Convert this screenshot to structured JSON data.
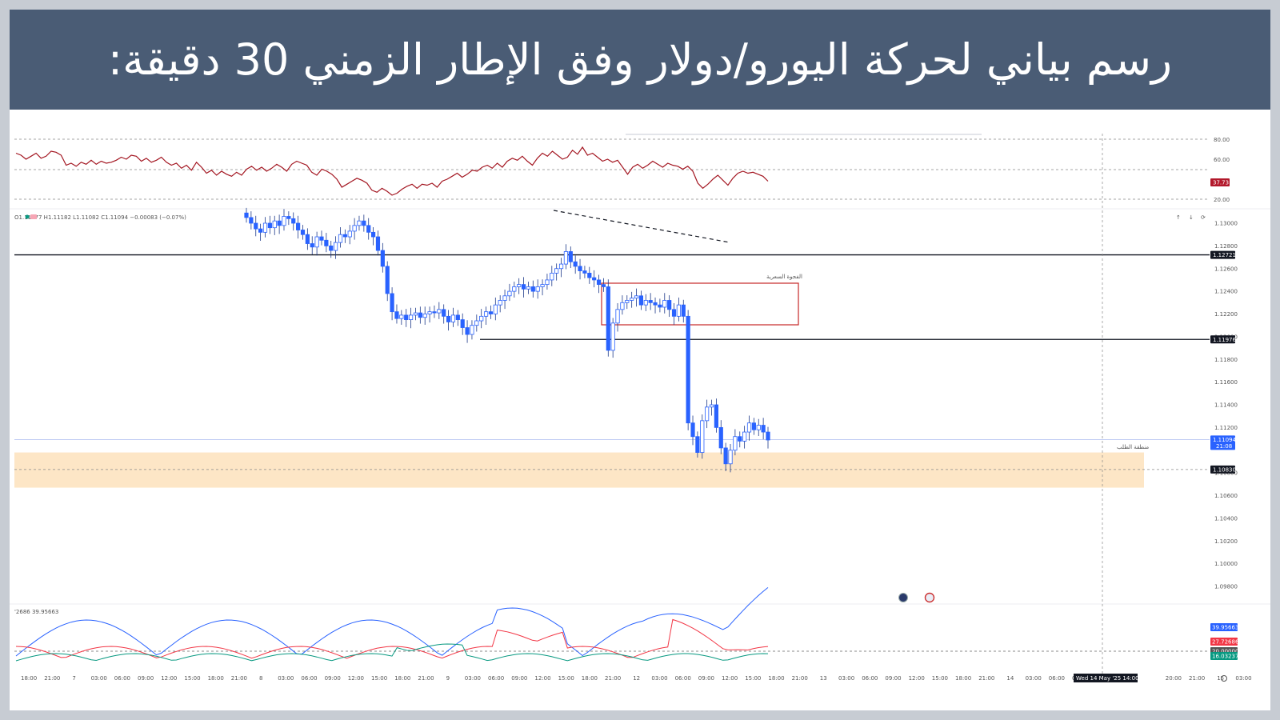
{
  "banner": {
    "title": "رسم بياني لحركة اليورو/دولار وفق الإطار الزمني 30 دقيقة:"
  },
  "chart_data": {
    "type": "candlestick",
    "legend": "O1.11177 H1.11182 L1.11082 C1.11094 −0.00083 (−0.07%)",
    "price_axis": {
      "ticks": [
        "1.13000",
        "1.12800",
        "1.12600",
        "1.12400",
        "1.12200",
        "1.12000",
        "1.11800",
        "1.11600",
        "1.11400",
        "1.11200",
        "1.10800",
        "1.10600",
        "1.10400",
        "1.10200",
        "1.10000",
        "1.09800"
      ],
      "range": [
        1.0975,
        1.1335
      ]
    },
    "price_labels": [
      {
        "value": 1.12721,
        "text": "1.12721",
        "color": "#131722"
      },
      {
        "value": 1.11976,
        "text": "1.11976",
        "color": "#131722"
      },
      {
        "value": 1.11094,
        "text": "1.11094",
        "sub": "21:08",
        "color": "#2962ff"
      },
      {
        "value": 1.1083,
        "text": "1.10830",
        "color": "#131722"
      }
    ],
    "horizontal_levels": [
      1.12721,
      1.11976
    ],
    "annotations": {
      "box_label": "الفجوة السعرية",
      "demand_zone_label": "منطقة الطلب",
      "demand_zone": [
        1.1067,
        1.1098
      ]
    },
    "candles_close": [
      1.1305,
      1.13,
      1.1295,
      1.1292,
      1.13,
      1.1296,
      1.1302,
      1.1298,
      1.1306,
      1.1304,
      1.13,
      1.1294,
      1.129,
      1.1282,
      1.1279,
      1.1288,
      1.1285,
      1.128,
      1.1276,
      1.1283,
      1.129,
      1.1288,
      1.1293,
      1.1298,
      1.1302,
      1.1298,
      1.1292,
      1.1288,
      1.1276,
      1.1262,
      1.1238,
      1.1222,
      1.1216,
      1.1219,
      1.1215,
      1.1219,
      1.1221,
      1.1217,
      1.122,
      1.1222,
      1.1221,
      1.1224,
      1.1218,
      1.1213,
      1.1219,
      1.1215,
      1.1208,
      1.1202,
      1.121,
      1.1214,
      1.1218,
      1.1222,
      1.122,
      1.1228,
      1.1232,
      1.1236,
      1.124,
      1.1244,
      1.1246,
      1.1242,
      1.1244,
      1.124,
      1.1244,
      1.1246,
      1.125,
      1.1256,
      1.126,
      1.1264,
      1.1275,
      1.1266,
      1.1262,
      1.1258,
      1.1256,
      1.1252,
      1.125,
      1.1246,
      1.1244,
      1.1188,
      1.1212,
      1.1224,
      1.123,
      1.1232,
      1.1234,
      1.1236,
      1.1228,
      1.1232,
      1.123,
      1.1228,
      1.1226,
      1.1232,
      1.1224,
      1.1218,
      1.1228,
      1.1218,
      1.1124,
      1.1112,
      1.1098,
      1.1126,
      1.1138,
      1.114,
      1.112,
      1.1102,
      1.1088,
      1.11,
      1.1112,
      1.1108,
      1.1116,
      1.1124,
      1.1118,
      1.1122,
      1.1116,
      1.1109
    ],
    "time_axis": [
      "18:00",
      "21:00",
      "7",
      "03:00",
      "06:00",
      "09:00",
      "12:00",
      "15:00",
      "18:00",
      "21:00",
      "8",
      "03:00",
      "06:00",
      "09:00",
      "12:00",
      "15:00",
      "18:00",
      "21:00",
      "9",
      "03:00",
      "06:00",
      "09:00",
      "12:00",
      "15:00",
      "18:00",
      "21:00",
      "12",
      "03:00",
      "06:00",
      "09:00",
      "12:00",
      "15:00",
      "18:00",
      "21:00",
      "13",
      "03:00",
      "06:00",
      "09:00",
      "12:00",
      "15:00",
      "18:00",
      "21:00",
      "14",
      "03:00",
      "06:00",
      "09:00",
      "",
      "",
      "",
      "20:00",
      "21:00",
      "15",
      "03:00"
    ],
    "time_highlight": "Wed 14 May '25   14:00",
    "rsi": {
      "ticks": [
        "80.00",
        "60.00",
        "20.00"
      ],
      "last": "37.73",
      "values": [
        66,
        64,
        60,
        63,
        66,
        61,
        63,
        68,
        67,
        64,
        54,
        56,
        53,
        57,
        55,
        59,
        55,
        58,
        56,
        57,
        59,
        62,
        60,
        64,
        63,
        58,
        61,
        57,
        59,
        62,
        57,
        54,
        56,
        51,
        54,
        49,
        57,
        52,
        46,
        49,
        44,
        48,
        45,
        43,
        47,
        44,
        50,
        53,
        49,
        52,
        48,
        51,
        55,
        52,
        48,
        55,
        58,
        56,
        54,
        47,
        44,
        50,
        48,
        45,
        40,
        32,
        35,
        38,
        41,
        39,
        36,
        29,
        27,
        31,
        28,
        24,
        26,
        30,
        33,
        35,
        31,
        35,
        34,
        36,
        32,
        38,
        40,
        43,
        46,
        42,
        45,
        49,
        48,
        52,
        54,
        51,
        56,
        52,
        58,
        61,
        59,
        63,
        58,
        54,
        61,
        66,
        63,
        68,
        64,
        60,
        62,
        69,
        65,
        72,
        64,
        66,
        62,
        58,
        60,
        57,
        59,
        52,
        45,
        52,
        55,
        51,
        54,
        58,
        55,
        52,
        56,
        54,
        53,
        50,
        53,
        48,
        36,
        31,
        35,
        40,
        44,
        39,
        34,
        41,
        46,
        48,
        46,
        47,
        45,
        43,
        38
      ]
    },
    "adx": {
      "legend_values": "'2686   39.95663",
      "labels": [
        {
          "text": "39.95663",
          "color": "#2962ff"
        },
        {
          "text": "27.72686",
          "color": "#f23645"
        },
        {
          "text": "20.00000",
          "color": "#555555"
        },
        {
          "text": "16.03237",
          "color": "#089981"
        }
      ]
    }
  }
}
